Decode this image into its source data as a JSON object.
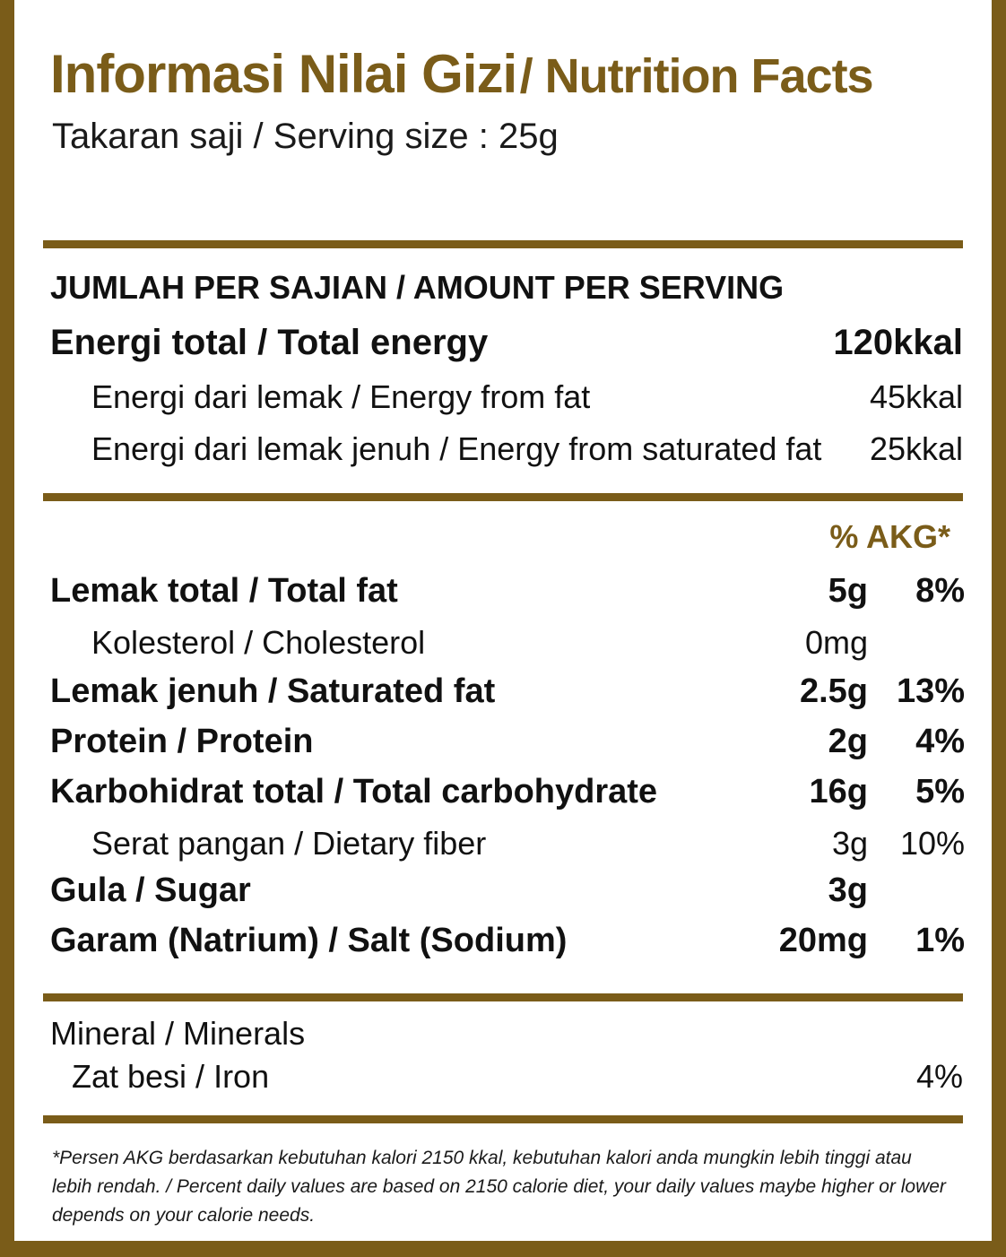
{
  "title": {
    "indonesian": "Informasi Nilai Gizi",
    "english": "/ Nutrition Facts"
  },
  "serving_size": "Takaran saji / Serving size : 25g",
  "amount_header": "JUMLAH PER SAJIAN / AMOUNT PER SERVING",
  "energy": [
    {
      "label": "Energi total / Total energy",
      "value": "120kkal"
    },
    {
      "label": "Energi dari lemak / Energy from fat",
      "value": "45kkal"
    },
    {
      "label": "Energi dari lemak jenuh / Energy from saturated fat",
      "value": "25kkal"
    }
  ],
  "akg_header": "% AKG*",
  "nutrients": [
    {
      "label": "Lemak total / Total fat",
      "amount": "5g",
      "percent": "8%"
    },
    {
      "label": "Kolesterol / Cholesterol",
      "amount": "0mg",
      "percent": ""
    },
    {
      "label": "Lemak jenuh / Saturated fat",
      "amount": "2.5g",
      "percent": "13%"
    },
    {
      "label": "Protein / Protein",
      "amount": "2g",
      "percent": "4%"
    },
    {
      "label": "Karbohidrat total / Total carbohydrate",
      "amount": "16g",
      "percent": "5%"
    },
    {
      "label": "Serat pangan / Dietary fiber",
      "amount": "3g",
      "percent": "10%"
    },
    {
      "label": "Gula / Sugar",
      "amount": "3g",
      "percent": ""
    },
    {
      "label": "Garam (Natrium) / Salt (Sodium)",
      "amount": "20mg",
      "percent": "1%"
    }
  ],
  "minerals": {
    "header": "Mineral / Minerals",
    "items": [
      {
        "label": "Zat besi / Iron",
        "percent": "4%"
      }
    ]
  },
  "footnote": "*Persen AKG berdasarkan kebutuhan kalori 2150 kkal, kebutuhan kalori anda mungkin lebih tinggi atau lebih rendah. / Percent daily values are based on 2150 calorie diet, your daily values maybe higher or lower depends on your calorie needs.",
  "colors": {
    "accent": "#7a5c19",
    "text": "#111111",
    "background": "#ffffff"
  }
}
